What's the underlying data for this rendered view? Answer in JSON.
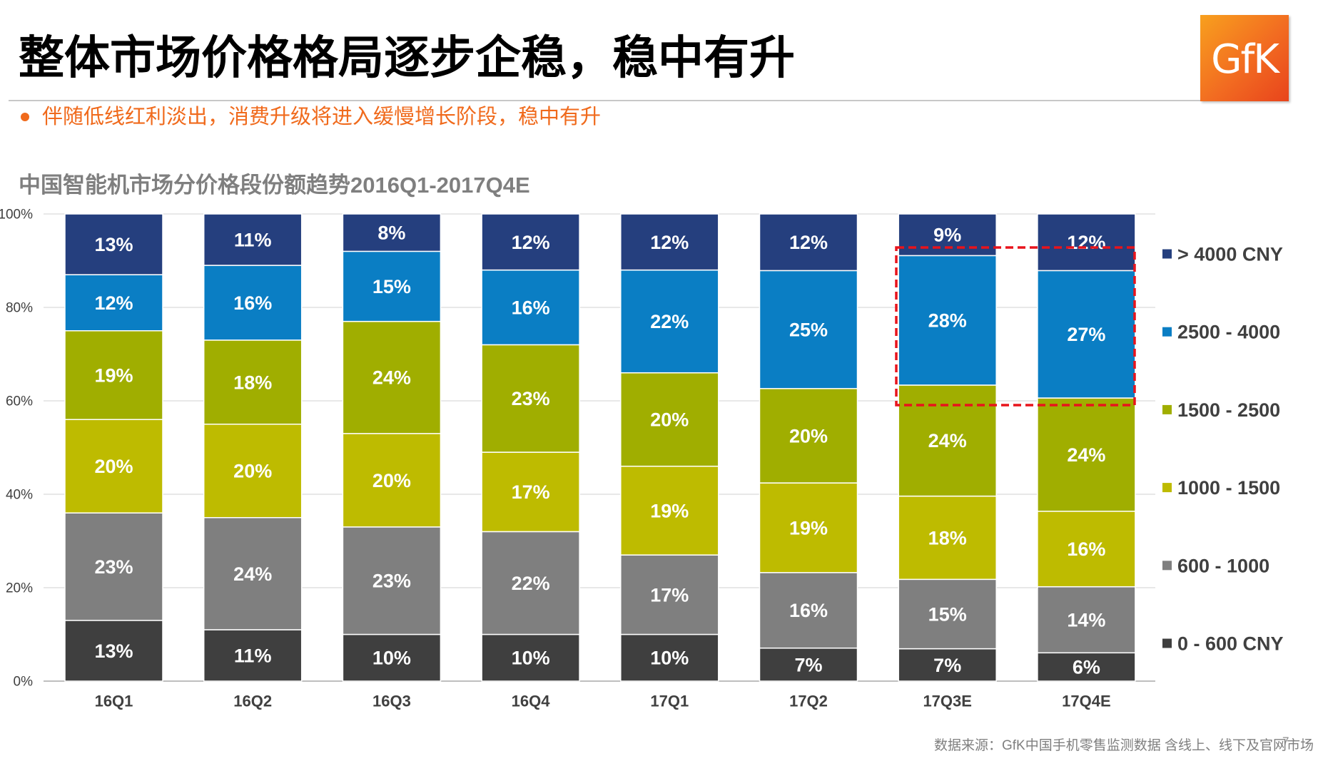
{
  "slide": {
    "title": "整体市场价格格局逐步企稳，稳中有升",
    "bullet": "伴随低线红利淡出，消费升级将进入缓慢增长阶段，稳中有升",
    "source": "数据来源：GfK中国手机零售监测数据 含线上、线下及官网市场",
    "page_number": "7",
    "logo_text": "GfK",
    "colors": {
      "accent": "#F06A1C",
      "title_text": "#000000",
      "chart_title_text": "#7F7F7F",
      "highlight": "#E8141C"
    }
  },
  "chart_data": {
    "type": "bar",
    "stacked": true,
    "title": "中国智能机市场分价格段份额趋势2016Q1-2017Q4E",
    "xlabel": "",
    "ylabel": "",
    "ylim": [
      0,
      100
    ],
    "y_ticks": [
      0,
      20,
      40,
      60,
      80,
      100
    ],
    "y_tick_labels": [
      "0%",
      "20%",
      "40%",
      "60%",
      "80%",
      "100%"
    ],
    "grid": true,
    "legend_position": "right",
    "categories": [
      "16Q1",
      "16Q2",
      "16Q3",
      "16Q4",
      "17Q1",
      "17Q2",
      "17Q3E",
      "17Q4E"
    ],
    "series": [
      {
        "name": "0 - 600 CNY",
        "color": "#3F3F3F",
        "values": [
          13,
          11,
          10,
          10,
          10,
          7,
          7,
          6
        ],
        "labels": [
          "13%",
          "11%",
          "10%",
          "10%",
          "10%",
          "7%",
          "7%",
          "6%"
        ]
      },
      {
        "name": "600 - 1000",
        "color": "#7F7F7F",
        "values": [
          23,
          24,
          23,
          22,
          17,
          16,
          15,
          14
        ],
        "labels": [
          "23%",
          "24%",
          "23%",
          "22%",
          "17%",
          "16%",
          "15%",
          "14%"
        ]
      },
      {
        "name": "1000 - 1500",
        "color": "#BEBB00",
        "values": [
          20,
          20,
          20,
          17,
          19,
          19,
          18,
          16
        ],
        "labels": [
          "20%",
          "20%",
          "20%",
          "17%",
          "19%",
          "19%",
          "18%",
          "16%"
        ]
      },
      {
        "name": "1500 - 2500",
        "color": "#A0AE00",
        "values": [
          19,
          18,
          24,
          23,
          20,
          20,
          24,
          24
        ],
        "labels": [
          "19%",
          "18%",
          "24%",
          "23%",
          "20%",
          "20%",
          "24%",
          "24%"
        ]
      },
      {
        "name": "2500 - 4000",
        "color": "#0A7EC4",
        "values": [
          12,
          16,
          15,
          16,
          22,
          25,
          28,
          27
        ],
        "labels": [
          "12%",
          "16%",
          "15%",
          "16%",
          "22%",
          "25%",
          "28%",
          "27%"
        ]
      },
      {
        "name": "> 4000 CNY",
        "color": "#253F7E",
        "values": [
          13,
          11,
          8,
          12,
          12,
          12,
          9,
          12
        ],
        "labels": [
          "13%",
          "11%",
          "8%",
          "12%",
          "12%",
          "12%",
          "9%",
          "12%"
        ]
      }
    ]
  }
}
